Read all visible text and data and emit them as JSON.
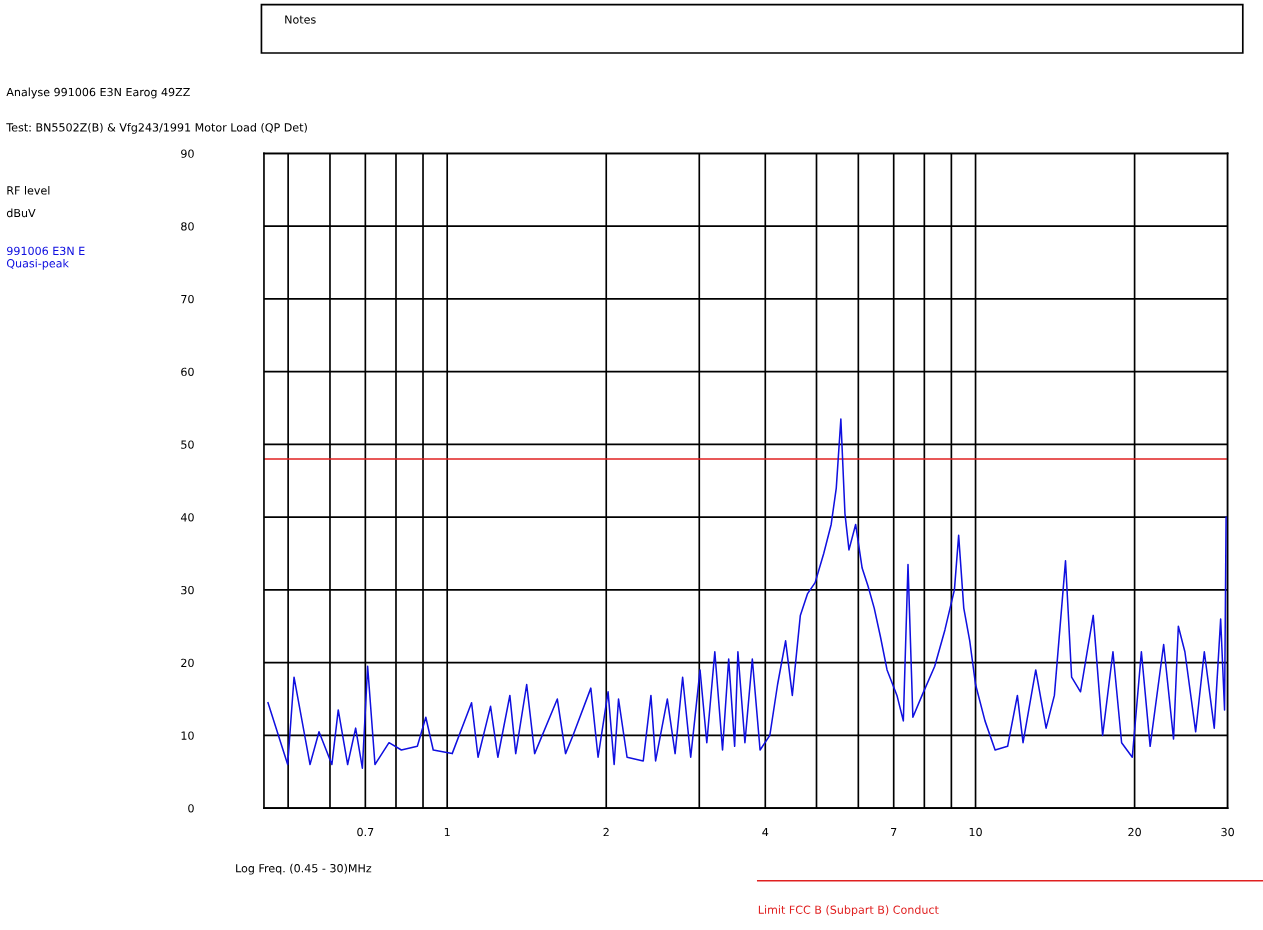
{
  "chart_data": {
    "type": "line",
    "title": "Analyse 991006 E3N Earog 49ZZ",
    "subtitle": "Test: BN5502Z(B) & Vfg243/1991 Motor Load (QP Det)",
    "ylabel": "RF level\ndBuV",
    "xlabel": "Log Freq. (0.45 - 30)MHz",
    "annotations": [
      "Notes"
    ],
    "log": "x",
    "xlim": [
      0.45,
      30
    ],
    "xticks": [
      {
        "value": 0.5,
        "label": null
      },
      {
        "value": 0.6,
        "label": null
      },
      0.7,
      {
        "value": 0.8,
        "label": null
      },
      {
        "value": 0.9,
        "label": null
      },
      1,
      2,
      {
        "value": 3,
        "label": null
      },
      4,
      {
        "value": 5,
        "label": null
      },
      {
        "value": 6,
        "label": null
      },
      7,
      {
        "value": 8,
        "label": null
      },
      {
        "value": 9,
        "label": null
      },
      10,
      20,
      30
    ],
    "ylim": [
      0,
      90
    ],
    "yticks": [
      0,
      10,
      20,
      30,
      40,
      50,
      60,
      70,
      80,
      90
    ],
    "grid": true,
    "legend": "left",
    "marker": "none",
    "line_style": "solid",
    "ref_lines": [
      {
        "axis": "y",
        "value": 48,
        "label": "Limit FCC B (Subpart B) Conduct",
        "color": "#e02020",
        "line_style": "solid"
      }
    ],
    "series": [
      {
        "name": "991006 E3N E\nQuasi-peak",
        "color": "#1010e0",
        "x": [
          0.458,
          0.499,
          0.513,
          0.55,
          0.572,
          0.605,
          0.622,
          0.648,
          0.671,
          0.691,
          0.707,
          0.73,
          0.776,
          0.819,
          0.878,
          0.911,
          0.941,
          1.022,
          1.112,
          1.144,
          1.208,
          1.247,
          1.314,
          1.348,
          1.414,
          1.464,
          1.616,
          1.675,
          1.73,
          1.87,
          1.93,
          2.016,
          2.07,
          2.11,
          2.19,
          2.35,
          2.43,
          2.48,
          2.61,
          2.7,
          2.79,
          2.89,
          3.01,
          3.1,
          3.21,
          3.32,
          3.41,
          3.5,
          3.55,
          3.66,
          3.78,
          3.91,
          4.08,
          4.22,
          4.37,
          4.5,
          4.66,
          4.81,
          4.97,
          5.16,
          5.33,
          5.45,
          5.56,
          5.66,
          5.76,
          5.93,
          6.1,
          6.26,
          6.43,
          6.61,
          6.8,
          7.1,
          7.3,
          7.45,
          7.61,
          7.92,
          8.37,
          8.75,
          9.12,
          9.29,
          9.5,
          9.75,
          10.0,
          10.42,
          10.89,
          11.5,
          12.0,
          12.3,
          13.0,
          13.6,
          14.1,
          14.8,
          15.2,
          15.8,
          16.7,
          17.4,
          18.2,
          18.9,
          19.8,
          20.6,
          21.4,
          22.7,
          23.7,
          24.2,
          24.9,
          26.1,
          27.1,
          28.3,
          29.1,
          29.6,
          29.8
        ],
        "values": [
          14.5,
          6,
          18,
          6,
          10.5,
          6,
          13.5,
          6,
          11,
          5.5,
          19.5,
          6,
          9,
          8,
          8.5,
          12.5,
          8,
          7.5,
          14.5,
          7,
          14,
          7,
          15.5,
          7.5,
          17,
          7.5,
          15,
          7.5,
          10,
          16.5,
          7,
          16,
          6,
          15,
          7,
          6.5,
          15.5,
          6.5,
          15,
          7.5,
          18,
          7,
          19,
          9,
          21.5,
          8,
          20.5,
          8.5,
          21.5,
          9,
          20.5,
          8,
          10,
          17,
          23,
          15.5,
          26.5,
          29.5,
          31,
          35,
          39,
          44,
          53.5,
          40.5,
          35.5,
          39,
          33,
          30.5,
          27.5,
          23.5,
          19,
          15.5,
          12,
          33.5,
          12.5,
          15.5,
          19.5,
          24.5,
          30,
          37.5,
          27.5,
          23,
          17,
          12,
          8,
          8.5,
          15.5,
          9,
          19,
          11,
          15.5,
          34,
          18,
          16,
          26.5,
          10,
          21.5,
          9,
          7,
          21.5,
          8.5,
          22.5,
          9.5,
          25,
          21.5,
          10.5,
          21.5,
          11,
          26,
          13.5,
          40
        ]
      }
    ]
  }
}
